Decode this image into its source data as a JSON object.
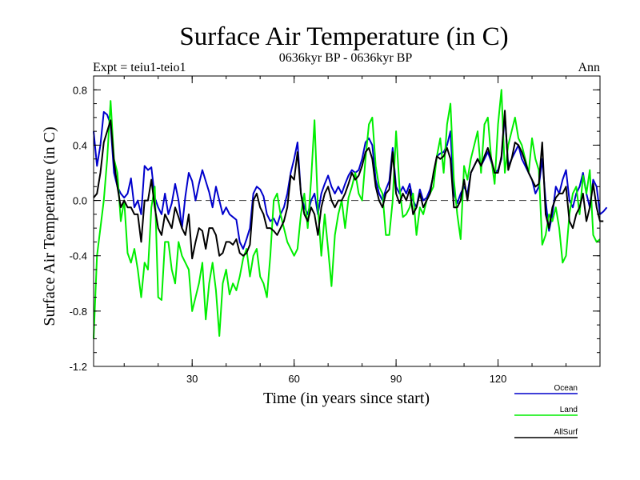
{
  "chart_data": {
    "type": "line",
    "title": "Surface Air Temperature (in C)",
    "subtitle": "0636kyr BP - 0636kyr BP",
    "left_label": "Expt = teiu1-teio1",
    "right_label": "Ann",
    "xlabel": "Time (in years since start)",
    "ylabel": "Surface Air Temperature (in C)",
    "xlim": [
      1,
      150
    ],
    "ylim": [
      -1.2,
      0.9
    ],
    "xticks": [
      30,
      60,
      90,
      120
    ],
    "xtick_labels": [
      "30",
      "60",
      "90",
      "120"
    ],
    "yticks": [
      -1.2,
      -0.8,
      -0.4,
      0.0,
      0.4,
      0.8
    ],
    "ytick_labels": [
      "-1.2",
      "-0.8",
      "-0.4",
      "0.0",
      "0.4",
      "0.8"
    ],
    "zero_line": 0.0,
    "series": [
      {
        "name": "Ocean",
        "color": "#0000cc",
        "values": [
          0.5,
          0.25,
          0.4,
          0.64,
          0.62,
          0.55,
          0.2,
          0.1,
          0.05,
          0.02,
          0.05,
          0.16,
          -0.05,
          0.0,
          -0.1,
          0.25,
          0.22,
          0.24,
          0.02,
          -0.05,
          -0.1,
          0.05,
          -0.1,
          -0.02,
          0.12,
          0.0,
          -0.2,
          0.03,
          0.2,
          0.14,
          0.0,
          0.12,
          0.22,
          0.14,
          0.06,
          -0.05,
          0.1,
          0.0,
          -0.1,
          -0.05,
          -0.1,
          -0.12,
          -0.14,
          -0.3,
          -0.35,
          -0.28,
          -0.2,
          0.05,
          0.1,
          0.08,
          0.03,
          -0.1,
          -0.15,
          -0.13,
          -0.18,
          -0.1,
          -0.05,
          0.05,
          0.2,
          0.3,
          0.42,
          0.05,
          -0.05,
          -0.1,
          0.0,
          0.05,
          -0.1,
          0.05,
          0.12,
          0.18,
          0.1,
          0.05,
          0.1,
          0.05,
          0.12,
          0.18,
          0.22,
          0.2,
          0.22,
          0.3,
          0.42,
          0.45,
          0.4,
          0.15,
          0.05,
          0.0,
          0.08,
          0.14,
          0.38,
          0.1,
          0.05,
          0.1,
          0.05,
          0.12,
          0.0,
          -0.05,
          0.08,
          0.0,
          0.02,
          0.08,
          0.18,
          0.32,
          0.34,
          0.35,
          0.4,
          0.5,
          0.05,
          -0.02,
          0.05,
          0.1,
          0.05,
          0.2,
          0.25,
          0.3,
          0.25,
          0.3,
          0.35,
          0.28,
          0.2,
          0.22,
          0.3,
          0.62,
          0.25,
          0.3,
          0.35,
          0.4,
          0.3,
          0.25,
          0.2,
          0.15,
          0.05,
          0.1,
          0.3,
          0.0,
          -0.22,
          -0.1,
          0.1,
          0.05,
          0.15,
          0.22,
          0.0,
          -0.05,
          0.05,
          0.1,
          0.2,
          0.05,
          -0.05,
          0.15,
          0.1,
          -0.1,
          -0.08,
          -0.05
        ]
      },
      {
        "name": "Land",
        "color": "#00ee00",
        "values": [
          -1.0,
          -0.4,
          -0.2,
          0.0,
          0.3,
          0.72,
          0.3,
          0.2,
          -0.15,
          0.0,
          -0.38,
          -0.45,
          -0.35,
          -0.5,
          -0.7,
          -0.45,
          -0.5,
          -0.05,
          0.1,
          -0.7,
          -0.72,
          -0.3,
          -0.3,
          -0.5,
          -0.6,
          -0.3,
          -0.4,
          -0.45,
          -0.5,
          -0.8,
          -0.7,
          -0.6,
          -0.45,
          -0.86,
          -0.6,
          -0.45,
          -0.65,
          -0.98,
          -0.6,
          -0.5,
          -0.68,
          -0.6,
          -0.65,
          -0.55,
          -0.42,
          -0.35,
          -0.55,
          -0.4,
          -0.35,
          -0.55,
          -0.6,
          -0.7,
          -0.4,
          0.0,
          0.05,
          -0.1,
          -0.2,
          -0.3,
          -0.35,
          -0.4,
          -0.35,
          -0.1,
          0.05,
          -0.2,
          0.15,
          0.58,
          -0.05,
          -0.4,
          -0.1,
          -0.35,
          -0.62,
          -0.25,
          -0.1,
          0.0,
          -0.2,
          0.02,
          0.1,
          0.2,
          0.05,
          0.0,
          0.3,
          0.55,
          0.6,
          0.25,
          0.1,
          0.05,
          -0.25,
          -0.25,
          0.0,
          0.5,
          0.1,
          -0.12,
          -0.1,
          -0.05,
          0.05,
          -0.25,
          -0.05,
          -0.1,
          0.0,
          0.05,
          0.1,
          0.32,
          0.45,
          0.2,
          0.55,
          0.7,
          0.15,
          -0.1,
          -0.28,
          0.25,
          0.15,
          0.3,
          0.4,
          0.5,
          0.2,
          0.55,
          0.6,
          0.3,
          0.12,
          0.55,
          0.8,
          0.2,
          0.4,
          0.5,
          0.6,
          0.45,
          0.4,
          0.3,
          0.2,
          0.45,
          0.3,
          0.22,
          -0.32,
          -0.25,
          -0.1,
          -0.15,
          -0.05,
          -0.2,
          -0.45,
          -0.4,
          -0.1,
          0.05,
          0.1,
          -0.1,
          0.18,
          0.05,
          0.22,
          -0.25,
          -0.3,
          -0.28
        ]
      },
      {
        "name": "AllSurf",
        "color": "#000000",
        "values": [
          0.02,
          0.05,
          0.2,
          0.42,
          0.5,
          0.58,
          0.28,
          0.1,
          -0.05,
          0.0,
          -0.05,
          -0.05,
          -0.1,
          -0.1,
          -0.3,
          0.0,
          0.0,
          0.15,
          -0.05,
          -0.2,
          -0.25,
          -0.1,
          -0.15,
          -0.2,
          -0.05,
          -0.12,
          -0.2,
          -0.25,
          -0.1,
          -0.42,
          -0.3,
          -0.2,
          -0.22,
          -0.35,
          -0.2,
          -0.2,
          -0.25,
          -0.4,
          -0.38,
          -0.3,
          -0.3,
          -0.32,
          -0.28,
          -0.38,
          -0.4,
          -0.38,
          -0.32,
          0.0,
          0.05,
          -0.05,
          -0.1,
          -0.2,
          -0.2,
          -0.22,
          -0.25,
          -0.2,
          -0.15,
          -0.05,
          0.18,
          0.15,
          0.35,
          0.05,
          -0.1,
          -0.15,
          -0.05,
          -0.1,
          -0.25,
          -0.05,
          0.05,
          0.1,
          0.0,
          -0.05,
          0.0,
          0.0,
          0.05,
          0.12,
          0.2,
          0.15,
          0.18,
          0.25,
          0.35,
          0.38,
          0.3,
          0.1,
          0.0,
          -0.05,
          0.05,
          0.08,
          0.35,
          0.05,
          -0.02,
          0.05,
          0.0,
          0.08,
          -0.1,
          -0.05,
          0.05,
          -0.05,
          0.0,
          0.05,
          0.2,
          0.32,
          0.3,
          0.32,
          0.38,
          0.3,
          -0.05,
          -0.05,
          0.0,
          0.15,
          0.0,
          0.2,
          0.25,
          0.3,
          0.25,
          0.32,
          0.38,
          0.3,
          0.2,
          0.2,
          0.32,
          0.65,
          0.22,
          0.3,
          0.42,
          0.4,
          0.35,
          0.28,
          0.2,
          0.15,
          0.1,
          0.12,
          0.42,
          -0.1,
          -0.2,
          -0.05,
          0.02,
          0.05,
          0.05,
          0.1,
          -0.15,
          -0.2,
          -0.1,
          -0.05,
          0.05,
          -0.15,
          -0.05,
          0.12,
          -0.05,
          -0.15,
          -0.15
        ]
      }
    ]
  }
}
